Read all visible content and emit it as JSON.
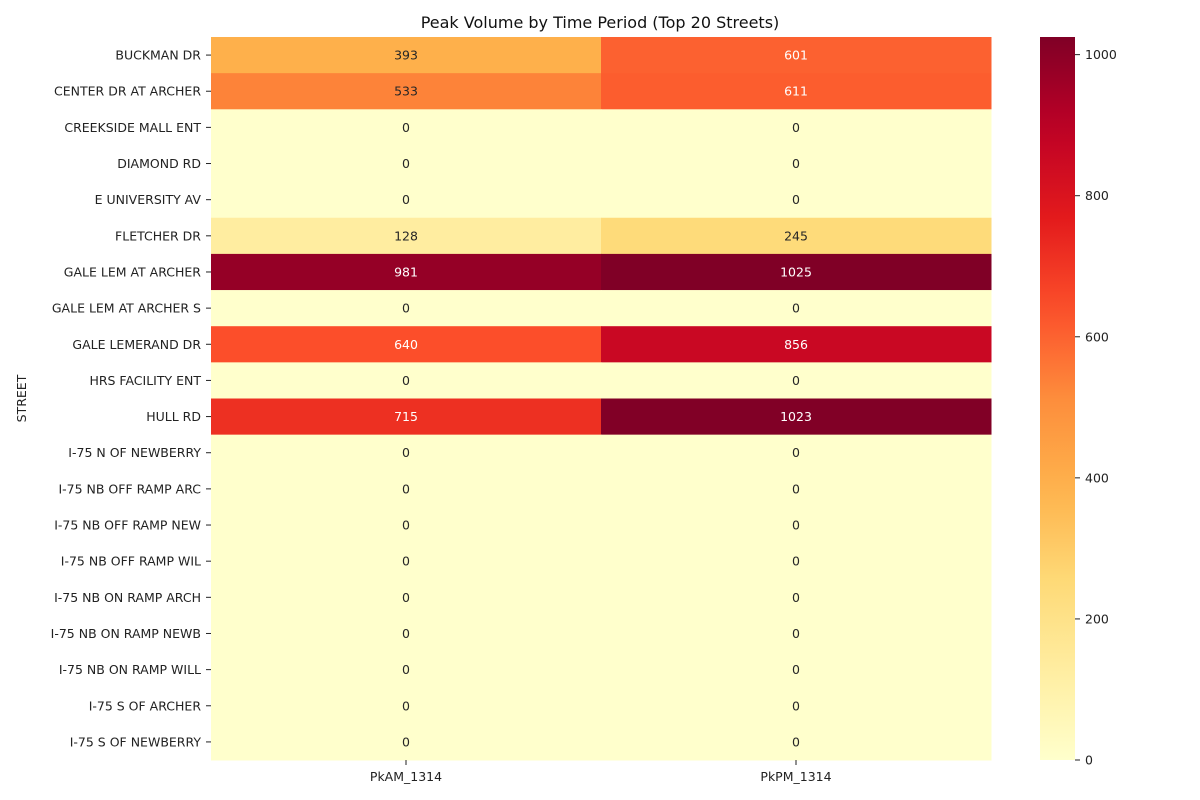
{
  "chart_data": {
    "type": "heatmap",
    "title": "Peak Volume by Time Period (Top 20 Streets)",
    "xlabel": "",
    "ylabel": "STREET",
    "columns": [
      "PkAM_1314",
      "PkPM_1314"
    ],
    "rows": [
      "BUCKMAN DR",
      "CENTER DR AT ARCHER",
      "CREEKSIDE MALL ENT",
      "DIAMOND RD",
      "E UNIVERSITY AV",
      "FLETCHER DR",
      "GALE LEM AT ARCHER",
      "GALE LEM AT ARCHER S",
      "GALE LEMERAND DR",
      "HRS FACILITY ENT",
      "HULL RD",
      "I-75 N OF NEWBERRY",
      "I-75 NB OFF RAMP ARC",
      "I-75 NB OFF RAMP NEW",
      "I-75 NB OFF RAMP WIL",
      "I-75 NB ON RAMP ARCH",
      "I-75 NB ON RAMP NEWB",
      "I-75 NB ON RAMP WILL",
      "I-75 S OF ARCHER",
      "I-75 S OF NEWBERRY"
    ],
    "values": [
      [
        393,
        601
      ],
      [
        533,
        611
      ],
      [
        0,
        0
      ],
      [
        0,
        0
      ],
      [
        0,
        0
      ],
      [
        128,
        245
      ],
      [
        981,
        1025
      ],
      [
        0,
        0
      ],
      [
        640,
        856
      ],
      [
        0,
        0
      ],
      [
        715,
        1023
      ],
      [
        0,
        0
      ],
      [
        0,
        0
      ],
      [
        0,
        0
      ],
      [
        0,
        0
      ],
      [
        0,
        0
      ],
      [
        0,
        0
      ],
      [
        0,
        0
      ],
      [
        0,
        0
      ],
      [
        0,
        0
      ]
    ],
    "colormap": "YlOrRd",
    "vmin": 0,
    "vmax": 1025,
    "colorbar_ticks": [
      0,
      200,
      400,
      600,
      800,
      1000
    ],
    "annotated": true,
    "legend": "colorbar-right"
  }
}
